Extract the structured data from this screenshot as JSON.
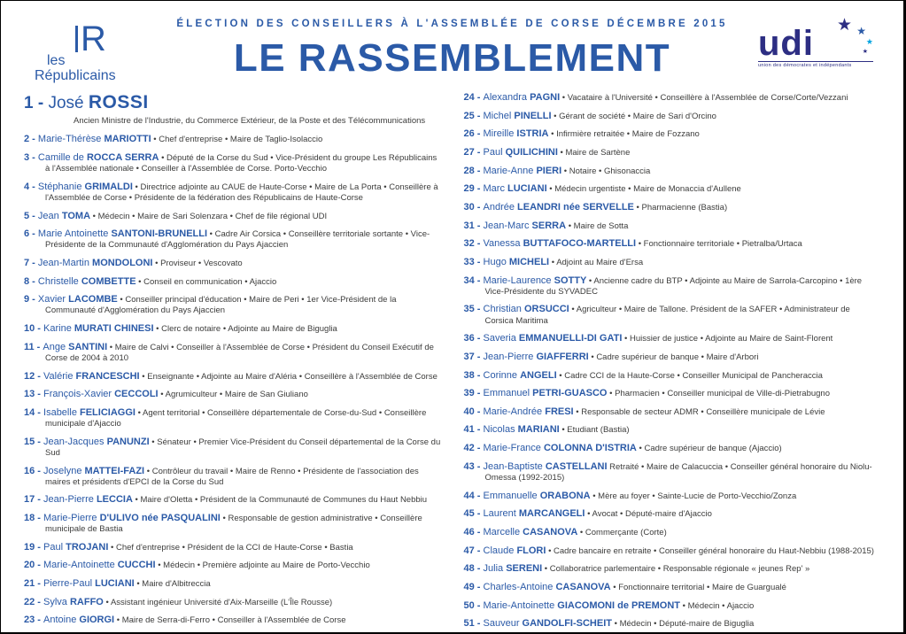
{
  "page": {
    "header": "ÉLECTION DES CONSEILLERS À L'ASSEMBLÉE DE CORSE DÉCEMBRE 2015",
    "title": "LE RASSEMBLEMENT"
  },
  "logos": {
    "les_republicains": {
      "mark": "R",
      "line1": "les",
      "line2": "Républicains"
    },
    "udi": {
      "name": "udi",
      "subtitle": "union des démocrates et indépendants",
      "star": "★"
    }
  },
  "colors": {
    "blue": "#2b5aa7",
    "udi_blue": "#2d2e83",
    "cyan": "#00a3e0",
    "text": "#3c3c3b"
  },
  "columns": {
    "left_last": 23
  },
  "candidates": [
    {
      "n": 1,
      "first": "José",
      "last": "ROSSI",
      "details": "Ancien Ministre de l'Industrie, du Commerce Extérieur, de la Poste et des Télécommunications"
    },
    {
      "n": 2,
      "first": "Marie-Thérèse",
      "last": "MARIOTTI",
      "details": "• Chef d'entreprise • Maire de Taglio-Isolaccio"
    },
    {
      "n": 3,
      "first": "Camille de",
      "last": "ROCCA SERRA",
      "details": "• Député de la Corse du Sud • Vice-Président du groupe Les Républicains à l'Assemblée nationale • Conseiller à l'Assemblée de Corse. Porto-Vecchio"
    },
    {
      "n": 4,
      "first": "Stéphanie",
      "last": "GRIMALDI",
      "details": "• Directrice adjointe au CAUE de Haute-Corse • Maire de La Porta • Conseillère à l'Assemblée de Corse • Présidente de la fédération des Républicains de Haute-Corse"
    },
    {
      "n": 5,
      "first": "Jean",
      "last": "TOMA",
      "details": "• Médecin • Maire de Sari Solenzara • Chef de file régional UDI"
    },
    {
      "n": 6,
      "first": "Marie Antoinette",
      "last": "SANTONI-BRUNELLI",
      "details": "• Cadre Air Corsica • Conseillère territoriale sortante • Vice-Présidente de la Communauté d'Agglomération du Pays Ajaccien"
    },
    {
      "n": 7,
      "first": "Jean-Martin",
      "last": "MONDOLONI",
      "details": "• Proviseur • Vescovato"
    },
    {
      "n": 8,
      "first": "Christelle",
      "last": "COMBETTE",
      "details": "• Conseil en communication • Ajaccio"
    },
    {
      "n": 9,
      "first": "Xavier",
      "last": "LACOMBE",
      "details": "• Conseiller principal d'éducation • Maire de Peri • 1er Vice-Président de la Communauté d'Agglomération du Pays Ajaccien"
    },
    {
      "n": 10,
      "first": "Karine",
      "last": "MURATI CHINESI",
      "details": "• Clerc de notaire • Adjointe au Maire de Biguglia"
    },
    {
      "n": 11,
      "first": "Ange",
      "last": "SANTINI",
      "details": "• Maire de Calvi • Conseiller à l'Assemblée de Corse • Président du Conseil Exécutif de Corse de 2004 à 2010"
    },
    {
      "n": 12,
      "first": "Valérie",
      "last": "FRANCESCHI",
      "details": "• Enseignante • Adjointe au Maire d'Aléria • Conseillère à l'Assemblée de Corse"
    },
    {
      "n": 13,
      "first": "François-Xavier",
      "last": "CECCOLI",
      "details": "• Agrumiculteur • Maire de San Giuliano"
    },
    {
      "n": 14,
      "first": "Isabelle",
      "last": "FELICIAGGI",
      "details": "• Agent territorial • Conseillère départementale de Corse-du-Sud • Conseillère municipale d'Ajaccio"
    },
    {
      "n": 15,
      "first": "Jean-Jacques",
      "last": "PANUNZI",
      "details": "• Sénateur • Premier Vice-Président du Conseil départemental de la Corse du Sud"
    },
    {
      "n": 16,
      "first": "Joselyne",
      "last": "MATTEI-FAZI",
      "details": "• Contrôleur du travail • Maire de Renno • Présidente de l'association des maires et présidents d'EPCI de la Corse du Sud"
    },
    {
      "n": 17,
      "first": "Jean-Pierre",
      "last": "LECCIA",
      "details": "• Maire d'Oletta • Président de la Communauté de Communes du Haut Nebbiu"
    },
    {
      "n": 18,
      "first": "Marie-Pierre",
      "last": "D'ULIVO née PASQUALINI",
      "details": "• Responsable de gestion administrative • Conseillère municipale de Bastia"
    },
    {
      "n": 19,
      "first": "Paul",
      "last": "TROJANI",
      "details": "• Chef d'entreprise • Président de la CCI de Haute-Corse • Bastia"
    },
    {
      "n": 20,
      "first": "Marie-Antoinette",
      "last": "CUCCHI",
      "details": "• Médecin • Première adjointe au Maire de Porto-Vecchio"
    },
    {
      "n": 21,
      "first": "Pierre-Paul",
      "last": "LUCIANI",
      "details": "• Maire d'Albitreccia"
    },
    {
      "n": 22,
      "first": "Sylva",
      "last": "RAFFO",
      "details": "• Assistant ingénieur Université d'Aix-Marseille (L'Île Rousse)"
    },
    {
      "n": 23,
      "first": "Antoine",
      "last": "GIORGI",
      "details": "• Maire de Serra-di-Ferro • Conseiller à l'Assemblée de Corse"
    },
    {
      "n": 24,
      "first": "Alexandra",
      "last": "PAGNI",
      "details": "• Vacataire à l'Université • Conseillère à l'Assemblée de Corse/Corte/Vezzani"
    },
    {
      "n": 25,
      "first": "Michel",
      "last": "PINELLI",
      "details": "• Gérant de société • Maire de Sari d'Orcino"
    },
    {
      "n": 26,
      "first": "Mireille",
      "last": "ISTRIA",
      "details": "• Infirmière retraitée • Maire de Fozzano"
    },
    {
      "n": 27,
      "first": "Paul",
      "last": "QUILICHINI",
      "details": "• Maire de Sartène"
    },
    {
      "n": 28,
      "first": "Marie-Anne",
      "last": "PIERI",
      "details": "• Notaire • Ghisonaccia"
    },
    {
      "n": 29,
      "first": "Marc",
      "last": "LUCIANI",
      "details": "• Médecin urgentiste • Maire de Monaccia d'Aullene"
    },
    {
      "n": 30,
      "first": "Andrée",
      "last": "LEANDRI née SERVELLE",
      "details": "• Pharmacienne (Bastia)"
    },
    {
      "n": 31,
      "first": "Jean-Marc",
      "last": "SERRA",
      "details": "• Maire de Sotta"
    },
    {
      "n": 32,
      "first": "Vanessa",
      "last": "BUTTAFOCO-MARTELLI",
      "details": "• Fonctionnaire territoriale • Pietralba/Urtaca"
    },
    {
      "n": 33,
      "first": "Hugo",
      "last": "MICHELI",
      "details": "• Adjoint au Maire d'Ersa"
    },
    {
      "n": 34,
      "first": "Marie-Laurence",
      "last": "SOTTY",
      "details": "• Ancienne cadre du BTP • Adjointe au Maire de Sarrola-Carcopino • 1ère Vice-Présidente du SYVADEC"
    },
    {
      "n": 35,
      "first": "Christian",
      "last": "ORSUCCI",
      "details": "• Agriculteur • Maire de Tallone. Président de la SAFER • Administrateur de Corsica Maritima"
    },
    {
      "n": 36,
      "first": "Saveria",
      "last": "EMMANUELLI-DI GATI",
      "details": "• Huissier de justice • Adjointe au Maire de Saint-Florent"
    },
    {
      "n": 37,
      "first": "Jean-Pierre",
      "last": "GIAFFERRI",
      "details": "• Cadre supérieur de banque • Maire d'Arbori"
    },
    {
      "n": 38,
      "first": "Corinne",
      "last": "ANGELI",
      "details": "• Cadre CCI de la Haute-Corse • Conseiller Municipal de Pancheraccia"
    },
    {
      "n": 39,
      "first": "Emmanuel",
      "last": "PETRI-GUASCO",
      "details": "• Pharmacien • Conseiller municipal de Ville-di-Pietrabugno"
    },
    {
      "n": 40,
      "first": "Marie-Andrée",
      "last": "FRESI",
      "details": "• Responsable de secteur ADMR • Conseillère municipale de Lévie"
    },
    {
      "n": 41,
      "first": "Nicolas",
      "last": "MARIANI",
      "details": "• Etudiant (Bastia)"
    },
    {
      "n": 42,
      "first": "Marie-France",
      "last": "COLONNA D'ISTRIA",
      "details": "• Cadre supérieur de banque (Ajaccio)"
    },
    {
      "n": 43,
      "first": "Jean-Baptiste",
      "last": "CASTELLANI",
      "details": "Retraité • Maire de Calacuccia • Conseiller général honoraire du Niolu-Omessa (1992-2015)"
    },
    {
      "n": 44,
      "first": "Emmanuelle",
      "last": "ORABONA",
      "details": "• Mère au foyer • Sainte-Lucie de Porto-Vecchio/Zonza"
    },
    {
      "n": 45,
      "first": "Laurent",
      "last": "MARCANGELI",
      "details": "• Avocat • Député-maire d'Ajaccio"
    },
    {
      "n": 46,
      "first": "Marcelle",
      "last": "CASANOVA",
      "details": "• Commerçante (Corte)"
    },
    {
      "n": 47,
      "first": "Claude",
      "last": "FLORI",
      "details": "• Cadre bancaire en retraite • Conseiller général honoraire du Haut-Nebbiu (1988-2015)"
    },
    {
      "n": 48,
      "first": "Julia",
      "last": "SERENI",
      "details": "• Collaboratrice parlementaire • Responsable régionale « jeunes Rep' »"
    },
    {
      "n": 49,
      "first": "Charles-Antoine",
      "last": "CASANOVA",
      "details": "• Fonctionnaire territorial • Maire de Guargualé"
    },
    {
      "n": 50,
      "first": "Marie-Antoinette",
      "last": "GIACOMONI de PREMONT",
      "details": "• Médecin • Ajaccio"
    },
    {
      "n": 51,
      "first": "Sauveur",
      "last": "GANDOLFI-SCHEIT",
      "details": "• Médecin • Député-maire de Biguglia"
    }
  ]
}
